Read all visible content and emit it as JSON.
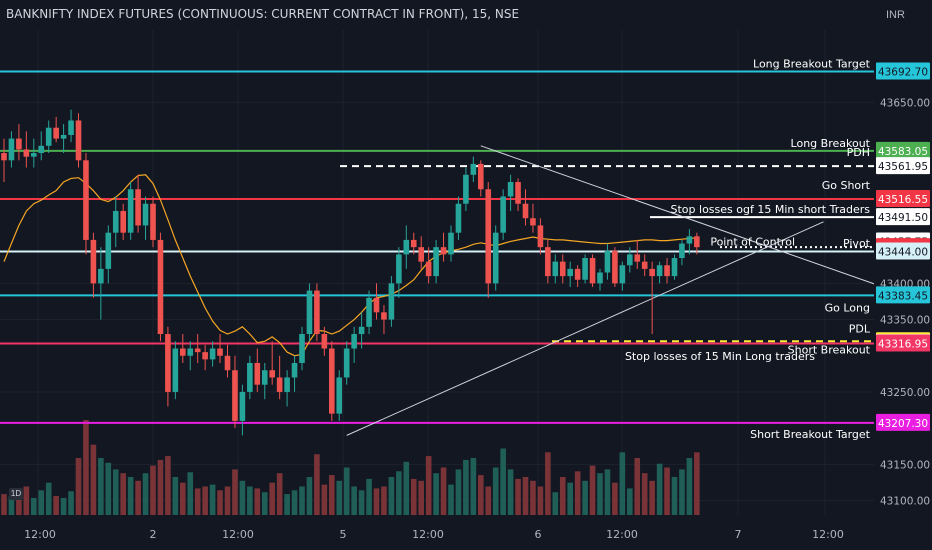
{
  "header": {
    "title": "BANKNIFTY INDEX FUTURES (CONTINUOUS: CURRENT CONTRACT IN FRONT), 15, NSE",
    "currency": "INR",
    "interval_badge": "1D"
  },
  "chart_data": {
    "type": "candlestick",
    "title": "BANKNIFTY INDEX FUTURES (CONTINUOUS: CURRENT CONTRACT IN FRONT), 15, NSE",
    "ylim": [
      43080,
      43750
    ],
    "x_ticks": [
      "12:00",
      "2",
      "12:00",
      "5",
      "12:00",
      "6",
      "12:00",
      "7",
      "12:00"
    ],
    "y_ticks": [
      43650,
      43400,
      43350,
      43250,
      43150,
      43100
    ],
    "y_tick_labels": [
      "43650.00",
      "43400.00",
      "43350.00",
      "43250.00",
      "43150.00",
      "43100.00"
    ],
    "candles": [
      {
        "o": 43580,
        "h": 43600,
        "l": 43540,
        "c": 43570
      },
      {
        "o": 43570,
        "h": 43610,
        "l": 43560,
        "c": 43600
      },
      {
        "o": 43600,
        "h": 43620,
        "l": 43570,
        "c": 43585
      },
      {
        "o": 43585,
        "h": 43610,
        "l": 43560,
        "c": 43575
      },
      {
        "o": 43575,
        "h": 43600,
        "l": 43560,
        "c": 43580
      },
      {
        "o": 43580,
        "h": 43610,
        "l": 43570,
        "c": 43590
      },
      {
        "o": 43590,
        "h": 43625,
        "l": 43580,
        "c": 43615
      },
      {
        "o": 43615,
        "h": 43630,
        "l": 43595,
        "c": 43600
      },
      {
        "o": 43600,
        "h": 43620,
        "l": 43580,
        "c": 43605
      },
      {
        "o": 43605,
        "h": 43640,
        "l": 43595,
        "c": 43625
      },
      {
        "o": 43625,
        "h": 43635,
        "l": 43560,
        "c": 43570
      },
      {
        "o": 43570,
        "h": 43580,
        "l": 43440,
        "c": 43460
      },
      {
        "o": 43460,
        "h": 43470,
        "l": 43380,
        "c": 43400
      },
      {
        "o": 43400,
        "h": 43450,
        "l": 43350,
        "c": 43420
      },
      {
        "o": 43420,
        "h": 43480,
        "l": 43400,
        "c": 43470
      },
      {
        "o": 43470,
        "h": 43520,
        "l": 43450,
        "c": 43500
      },
      {
        "o": 43500,
        "h": 43510,
        "l": 43460,
        "c": 43470
      },
      {
        "o": 43470,
        "h": 43540,
        "l": 43460,
        "c": 43530
      },
      {
        "o": 43530,
        "h": 43550,
        "l": 43470,
        "c": 43480
      },
      {
        "o": 43480,
        "h": 43520,
        "l": 43460,
        "c": 43510
      },
      {
        "o": 43510,
        "h": 43520,
        "l": 43450,
        "c": 43460
      },
      {
        "o": 43460,
        "h": 43470,
        "l": 43320,
        "c": 43330
      },
      {
        "o": 43330,
        "h": 43340,
        "l": 43230,
        "c": 43250
      },
      {
        "o": 43250,
        "h": 43320,
        "l": 43240,
        "c": 43310
      },
      {
        "o": 43310,
        "h": 43330,
        "l": 43290,
        "c": 43300
      },
      {
        "o": 43300,
        "h": 43320,
        "l": 43280,
        "c": 43310
      },
      {
        "o": 43310,
        "h": 43330,
        "l": 43290,
        "c": 43305
      },
      {
        "o": 43305,
        "h": 43315,
        "l": 43280,
        "c": 43295
      },
      {
        "o": 43295,
        "h": 43320,
        "l": 43285,
        "c": 43310
      },
      {
        "o": 43310,
        "h": 43330,
        "l": 43290,
        "c": 43300
      },
      {
        "o": 43300,
        "h": 43315,
        "l": 43270,
        "c": 43280
      },
      {
        "o": 43280,
        "h": 43300,
        "l": 43200,
        "c": 43210
      },
      {
        "o": 43210,
        "h": 43260,
        "l": 43190,
        "c": 43250
      },
      {
        "o": 43250,
        "h": 43300,
        "l": 43240,
        "c": 43290
      },
      {
        "o": 43290,
        "h": 43310,
        "l": 43250,
        "c": 43260
      },
      {
        "o": 43260,
        "h": 43290,
        "l": 43240,
        "c": 43280
      },
      {
        "o": 43280,
        "h": 43320,
        "l": 43260,
        "c": 43270
      },
      {
        "o": 43270,
        "h": 43300,
        "l": 43240,
        "c": 43250
      },
      {
        "o": 43250,
        "h": 43280,
        "l": 43230,
        "c": 43270
      },
      {
        "o": 43270,
        "h": 43300,
        "l": 43250,
        "c": 43290
      },
      {
        "o": 43290,
        "h": 43340,
        "l": 43280,
        "c": 43330
      },
      {
        "o": 43330,
        "h": 43400,
        "l": 43320,
        "c": 43390
      },
      {
        "o": 43390,
        "h": 43400,
        "l": 43320,
        "c": 43330
      },
      {
        "o": 43330,
        "h": 43340,
        "l": 43300,
        "c": 43310
      },
      {
        "o": 43310,
        "h": 43320,
        "l": 43210,
        "c": 43220
      },
      {
        "o": 43220,
        "h": 43280,
        "l": 43210,
        "c": 43270
      },
      {
        "o": 43270,
        "h": 43320,
        "l": 43260,
        "c": 43310
      },
      {
        "o": 43310,
        "h": 43340,
        "l": 43290,
        "c": 43330
      },
      {
        "o": 43330,
        "h": 43360,
        "l": 43310,
        "c": 43340
      },
      {
        "o": 43340,
        "h": 43390,
        "l": 43330,
        "c": 43380
      },
      {
        "o": 43380,
        "h": 43400,
        "l": 43350,
        "c": 43360
      },
      {
        "o": 43360,
        "h": 43370,
        "l": 43330,
        "c": 43350
      },
      {
        "o": 43350,
        "h": 43410,
        "l": 43340,
        "c": 43400
      },
      {
        "o": 43400,
        "h": 43450,
        "l": 43380,
        "c": 43440
      },
      {
        "o": 43440,
        "h": 43480,
        "l": 43420,
        "c": 43460
      },
      {
        "o": 43460,
        "h": 43470,
        "l": 43440,
        "c": 43450
      },
      {
        "o": 43450,
        "h": 43465,
        "l": 43420,
        "c": 43430
      },
      {
        "o": 43430,
        "h": 43450,
        "l": 43400,
        "c": 43410
      },
      {
        "o": 43410,
        "h": 43460,
        "l": 43400,
        "c": 43450
      },
      {
        "o": 43450,
        "h": 43470,
        "l": 43430,
        "c": 43440
      },
      {
        "o": 43440,
        "h": 43480,
        "l": 43430,
        "c": 43470
      },
      {
        "o": 43470,
        "h": 43520,
        "l": 43460,
        "c": 43510
      },
      {
        "o": 43510,
        "h": 43560,
        "l": 43500,
        "c": 43550
      },
      {
        "o": 43550,
        "h": 43575,
        "l": 43540,
        "c": 43565
      },
      {
        "o": 43565,
        "h": 43570,
        "l": 43520,
        "c": 43530
      },
      {
        "o": 43530,
        "h": 43540,
        "l": 43380,
        "c": 43400
      },
      {
        "o": 43400,
        "h": 43480,
        "l": 43390,
        "c": 43470
      },
      {
        "o": 43470,
        "h": 43530,
        "l": 43460,
        "c": 43520
      },
      {
        "o": 43520,
        "h": 43550,
        "l": 43500,
        "c": 43540
      },
      {
        "o": 43540,
        "h": 43545,
        "l": 43500,
        "c": 43510
      },
      {
        "o": 43510,
        "h": 43530,
        "l": 43480,
        "c": 43490
      },
      {
        "o": 43490,
        "h": 43510,
        "l": 43470,
        "c": 43480
      },
      {
        "o": 43480,
        "h": 43490,
        "l": 43440,
        "c": 43450
      },
      {
        "o": 43450,
        "h": 43460,
        "l": 43400,
        "c": 43410
      },
      {
        "o": 43410,
        "h": 43440,
        "l": 43400,
        "c": 43430
      },
      {
        "o": 43430,
        "h": 43440,
        "l": 43400,
        "c": 43410
      },
      {
        "o": 43410,
        "h": 43430,
        "l": 43395,
        "c": 43420
      },
      {
        "o": 43420,
        "h": 43425,
        "l": 43395,
        "c": 43405
      },
      {
        "o": 43405,
        "h": 43440,
        "l": 43400,
        "c": 43435
      },
      {
        "o": 43435,
        "h": 43440,
        "l": 43395,
        "c": 43400
      },
      {
        "o": 43400,
        "h": 43420,
        "l": 43390,
        "c": 43415
      },
      {
        "o": 43415,
        "h": 43455,
        "l": 43405,
        "c": 43445
      },
      {
        "o": 43445,
        "h": 43450,
        "l": 43395,
        "c": 43400
      },
      {
        "o": 43400,
        "h": 43430,
        "l": 43390,
        "c": 43425
      },
      {
        "o": 43425,
        "h": 43450,
        "l": 43415,
        "c": 43440
      },
      {
        "o": 43440,
        "h": 43460,
        "l": 43420,
        "c": 43430
      },
      {
        "o": 43430,
        "h": 43440,
        "l": 43410,
        "c": 43420
      },
      {
        "o": 43420,
        "h": 43430,
        "l": 43330,
        "c": 43410
      },
      {
        "o": 43410,
        "h": 43430,
        "l": 43400,
        "c": 43425
      },
      {
        "o": 43425,
        "h": 43435,
        "l": 43400,
        "c": 43410
      },
      {
        "o": 43410,
        "h": 43440,
        "l": 43405,
        "c": 43435
      },
      {
        "o": 43435,
        "h": 43460,
        "l": 43425,
        "c": 43455
      },
      {
        "o": 43455,
        "h": 43475,
        "l": 43440,
        "c": 43465
      },
      {
        "o": 43465,
        "h": 43470,
        "l": 43440,
        "c": 43450
      }
    ],
    "volume": [
      22,
      20,
      24,
      30,
      18,
      26,
      34,
      20,
      18,
      25,
      60,
      100,
      74,
      60,
      55,
      48,
      44,
      40,
      36,
      44,
      52,
      58,
      62,
      40,
      34,
      45,
      28,
      30,
      32,
      26,
      30,
      48,
      36,
      30,
      28,
      24,
      34,
      44,
      22,
      26,
      30,
      40,
      64,
      32,
      42,
      36,
      50,
      30,
      26,
      38,
      28,
      30,
      40,
      46,
      56,
      38,
      36,
      62,
      44,
      50,
      32,
      48,
      58,
      60,
      42,
      30,
      50,
      70,
      48,
      38,
      40,
      36,
      30,
      66,
      24,
      40,
      34,
      46,
      36,
      52,
      44,
      48,
      34,
      66,
      28,
      60,
      44,
      36,
      54,
      50,
      40,
      48,
      60,
      66
    ],
    "vwap": [
      43430,
      43455,
      43480,
      43500,
      43510,
      43515,
      43522,
      43528,
      43540,
      43545,
      43546,
      43538,
      43528,
      43516,
      43513,
      43519,
      43528,
      43540,
      43549,
      43550,
      43538,
      43515,
      43488,
      43460,
      43435,
      43410,
      43388,
      43366,
      43348,
      43335,
      43330,
      43334,
      43340,
      43330,
      43318,
      43320,
      43326,
      43318,
      43305,
      43300,
      43302,
      43320,
      43335,
      43334,
      43330,
      43334,
      43342,
      43350,
      43360,
      43372,
      43380,
      43382,
      43385,
      43390,
      43397,
      43405,
      43418,
      43430,
      43438,
      43442,
      43445,
      43447,
      43450,
      43454,
      43456,
      43454,
      43452,
      43455,
      43458,
      43460,
      43462,
      43464,
      43462,
      43461,
      43460,
      43460,
      43459,
      43458,
      43457,
      43456,
      43455,
      43455,
      43456,
      43457,
      43458,
      43459,
      43460,
      43460,
      43459,
      43459,
      43460,
      43461,
      43462,
      43463
    ],
    "levels": [
      {
        "label": "Long Breakout Target",
        "value": 43692.7,
        "price_label": "43692.70",
        "color": "#26c6da",
        "tag_bg": "#26c6da",
        "tag_fg": "#131722",
        "style": "solid"
      },
      {
        "label": "Long Breakout",
        "value": 43583.05,
        "price_label": "43583.05",
        "color": "#4caf50",
        "tag_bg": "#4caf50",
        "tag_fg": "#ffffff",
        "style": "solid"
      },
      {
        "label": "PDH",
        "value": 43561.95,
        "price_label": "43561.95",
        "color": "#ffffff",
        "tag_bg": "#ffffff",
        "tag_fg": "#131722",
        "style": "dashed"
      },
      {
        "label": "Go Short",
        "value": 43516.55,
        "price_label": "43516.55",
        "color": "#f23645",
        "tag_bg": "#f23645",
        "tag_fg": "#ffffff",
        "style": "solid"
      },
      {
        "label": "Stop losses ogf 15 Min short Traders",
        "value": 43491.5,
        "price_label": "43491.50",
        "color": "#ffffff",
        "tag_bg": "#ffffff",
        "tag_fg": "#131722",
        "style": "solid"
      },
      {
        "label": "Point of Control",
        "value": 43457.75,
        "price_label": "43457.75",
        "color": "#ffffff",
        "tag_bg": "#ffffff",
        "tag_fg": "#131722",
        "style": "none"
      },
      {
        "label": "Pivot",
        "value": 43450.0,
        "price_label": "43450.00",
        "color": "#ffffff",
        "tag_bg": "#f23645",
        "tag_fg": "#ffffff",
        "style": "dotted"
      },
      {
        "label": "",
        "value": 43444.0,
        "price_label": "43444.00",
        "color": "#d6f0f7",
        "tag_bg": "#d6f0f7",
        "tag_fg": "#131722",
        "style": "solid"
      },
      {
        "label": "Go Long",
        "value": 43383.45,
        "price_label": "43383.45",
        "color": "#26c6da",
        "tag_bg": "#26c6da",
        "tag_fg": "#131722",
        "style": "solid"
      },
      {
        "label": "PDL",
        "value": 43320.0,
        "price_label": "43320.00",
        "color": "#ffeb3b",
        "tag_bg": "#ffeb3b",
        "tag_fg": "#131722",
        "style": "dashed"
      },
      {
        "label": "Stop losses of 15 Min Long traders",
        "value": 43317.5,
        "price_label": "43317.50",
        "color": "#ffffff",
        "tag_bg": "#ffffff",
        "tag_fg": "#131722",
        "style": "none"
      },
      {
        "label": "Short Breakout",
        "value": 43316.95,
        "price_label": "43316.95",
        "color": "#f23665",
        "tag_bg": "#f23665",
        "tag_fg": "#ffffff",
        "style": "solid"
      },
      {
        "label": "Short Breakout Target",
        "value": 43207.3,
        "price_label": "43207.30",
        "color": "#e91ee0",
        "tag_bg": "#e91ee0",
        "tag_fg": "#ffffff",
        "style": "solid"
      }
    ],
    "trendlines": [
      {
        "name": "upper-trendline",
        "from": {
          "bar": 64,
          "price": 43590
        },
        "to": {
          "bar": 118,
          "price": 43395
        }
      },
      {
        "name": "lower-trendline",
        "from": {
          "bar": 46,
          "price": 43190
        },
        "to": {
          "bar": 110,
          "price": 43485
        }
      }
    ],
    "colors": {
      "up": "#26a69a",
      "down": "#ef5350",
      "vol_up": "#1f5f57",
      "vol_down": "#7a3438",
      "vwap": "#f5a623",
      "grid": "#1e222d",
      "axis_text": "#b2b5be"
    }
  }
}
